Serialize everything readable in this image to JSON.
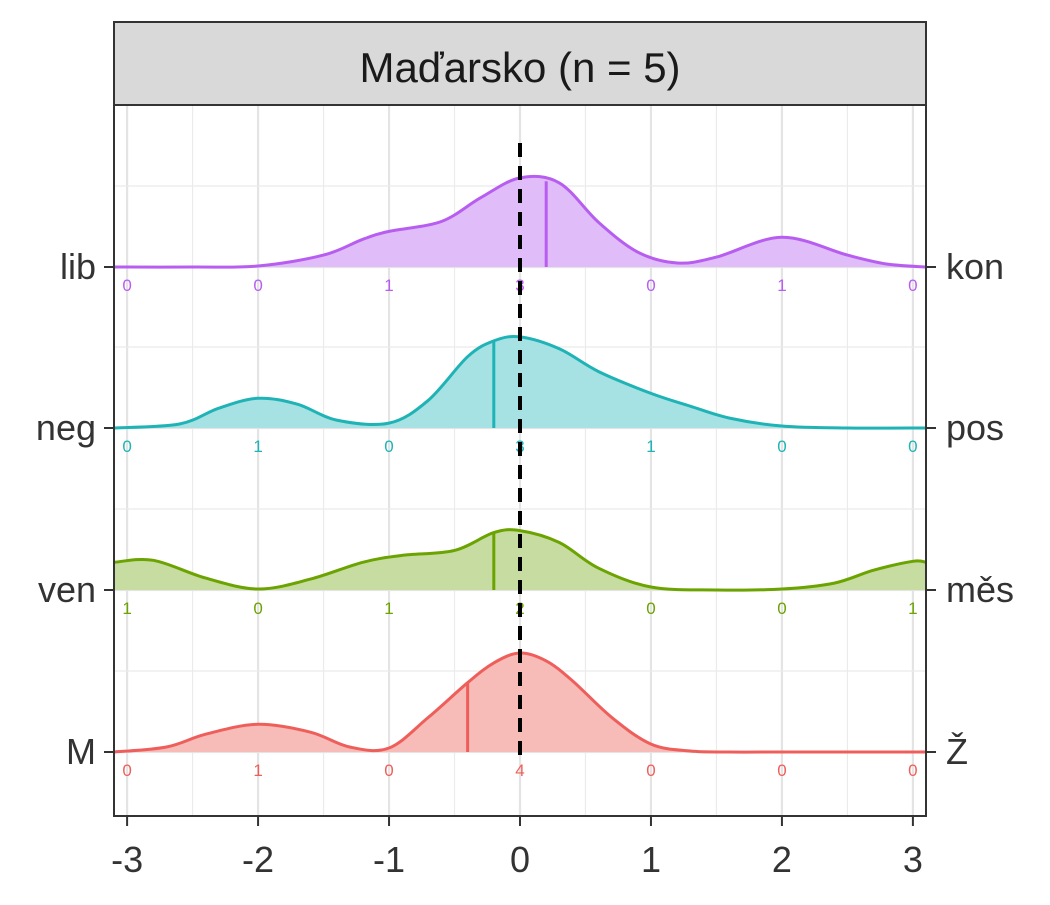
{
  "chart_data": {
    "type": "ridgeline",
    "title": "Maďarsko (n = 5)",
    "xlabel": "",
    "ylabel": "",
    "xlim": [
      -3.1,
      3.1
    ],
    "x_ticks": [
      -3,
      -2,
      -1,
      0,
      1,
      2,
      3
    ],
    "x_tick_labels": [
      "-3",
      "-2",
      "-1",
      "0",
      "1",
      "2",
      "3"
    ],
    "reference_line_x": 0,
    "count_positions": [
      -3,
      -2,
      -1,
      0,
      1,
      2,
      3
    ],
    "grid": true,
    "series": [
      {
        "left_label": "lib",
        "right_label": "kon",
        "color": "#B75EF0",
        "fill": "#E0BDF9",
        "mean": 0.2,
        "counts": [
          0,
          0,
          1,
          3,
          0,
          1,
          0
        ],
        "density_x": [
          -3.1,
          -2.5,
          -2,
          -1.5,
          -1.2,
          -1,
          -0.6,
          -0.3,
          0,
          0.3,
          0.6,
          0.9,
          1.2,
          1.5,
          2,
          2.5,
          2.8,
          3.1
        ],
        "density_y": [
          0.0,
          0.0,
          0.01,
          0.12,
          0.28,
          0.36,
          0.46,
          0.7,
          0.9,
          0.85,
          0.45,
          0.15,
          0.04,
          0.1,
          0.3,
          0.12,
          0.03,
          0.0
        ]
      },
      {
        "left_label": "neg",
        "right_label": "pos",
        "color": "#1FB3B6",
        "fill": "#A6E2E3",
        "mean": -0.2,
        "counts": [
          0,
          1,
          0,
          3,
          1,
          0,
          0
        ],
        "density_x": [
          -3.1,
          -2.6,
          -2.3,
          -2,
          -1.7,
          -1.4,
          -1,
          -0.7,
          -0.4,
          -0.2,
          0,
          0.3,
          0.6,
          1,
          1.3,
          1.6,
          2,
          2.5,
          3.1
        ],
        "density_y": [
          0.0,
          0.04,
          0.2,
          0.3,
          0.24,
          0.08,
          0.05,
          0.28,
          0.72,
          0.88,
          0.92,
          0.8,
          0.57,
          0.35,
          0.22,
          0.1,
          0.02,
          0.0,
          0.0
        ]
      },
      {
        "left_label": "ven",
        "right_label": "měs",
        "color": "#6BA300",
        "fill": "#C6DCA0",
        "mean": -0.2,
        "counts": [
          1,
          0,
          1,
          2,
          0,
          0,
          1
        ],
        "density_x": [
          -3.1,
          -2.8,
          -2.4,
          -2,
          -1.6,
          -1.2,
          -0.9,
          -0.5,
          -0.2,
          0,
          0.3,
          0.6,
          1,
          1.5,
          2,
          2.4,
          2.7,
          3,
          3.1
        ],
        "density_y": [
          0.28,
          0.3,
          0.12,
          0.01,
          0.11,
          0.28,
          0.35,
          0.4,
          0.58,
          0.6,
          0.48,
          0.22,
          0.03,
          0.0,
          0.01,
          0.07,
          0.2,
          0.29,
          0.28
        ]
      },
      {
        "left_label": "M",
        "right_label": "Ž",
        "color": "#EE5F5B",
        "fill": "#F7BBB8",
        "mean": -0.4,
        "counts": [
          0,
          1,
          0,
          4,
          0,
          0,
          0
        ],
        "density_x": [
          -3.1,
          -2.7,
          -2.4,
          -2,
          -1.6,
          -1.3,
          -1,
          -0.7,
          -0.4,
          -0.2,
          0,
          0.2,
          0.4,
          0.7,
          1,
          1.3,
          1.6,
          2,
          2.5,
          3.1
        ],
        "density_y": [
          0.0,
          0.05,
          0.18,
          0.28,
          0.2,
          0.05,
          0.04,
          0.35,
          0.7,
          0.9,
          1.0,
          0.92,
          0.72,
          0.35,
          0.08,
          0.01,
          0.0,
          0.0,
          0.0,
          0.0
        ]
      }
    ]
  }
}
